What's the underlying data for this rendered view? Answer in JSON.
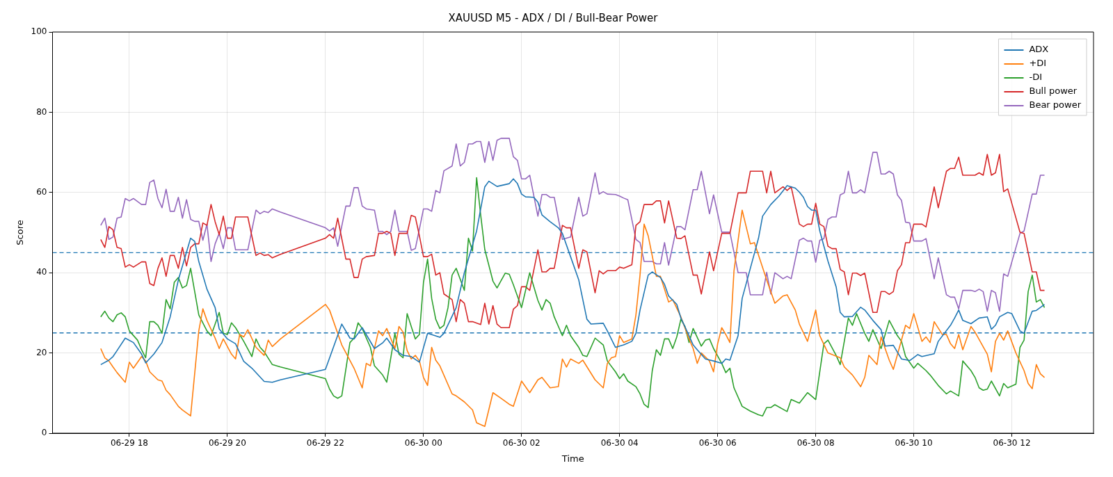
{
  "chart_data": {
    "type": "line",
    "title": "XAUUSD M5 - ADX / DI / Bull-Bear Power",
    "xlabel": "Time",
    "ylabel": "Score",
    "xlim": [
      "--06-29T16:26",
      "--06-30T13:40"
    ],
    "ylim": [
      0,
      100
    ],
    "xticks": [
      {
        "value": "--06-29T18:00",
        "label": "06-29 18"
      },
      {
        "value": "--06-29T20:00",
        "label": "06-29 20"
      },
      {
        "value": "--06-29T22:00",
        "label": "06-29 22"
      },
      {
        "value": "--06-30T00:00",
        "label": "06-30 00"
      },
      {
        "value": "--06-30T02:00",
        "label": "06-30 02"
      },
      {
        "value": "--06-30T04:00",
        "label": "06-30 04"
      },
      {
        "value": "--06-30T06:00",
        "label": "06-30 06"
      },
      {
        "value": "--06-30T08:00",
        "label": "06-30 08"
      },
      {
        "value": "--06-30T10:00",
        "label": "06-30 10"
      },
      {
        "value": "--06-30T12:00",
        "label": "06-30 12"
      }
    ],
    "yticks": [
      0,
      20,
      40,
      60,
      80,
      100
    ],
    "grid": true,
    "legend": "top right",
    "ref_lines": [
      {
        "axis": "y",
        "value": 45,
        "color": "#1f77b4",
        "line_style": "dashed"
      },
      {
        "axis": "y",
        "value": 25,
        "color": "#1f77b4",
        "line_style": "dashed"
      }
    ],
    "series": [
      {
        "name": "ADX",
        "color": "#1f77b4",
        "x": [
          "--06-29T17:25",
          "--06-29T17:35",
          "--06-29T17:40",
          "--06-29T17:45",
          "--06-29T17:55",
          "--06-29T18:05",
          "--06-29T18:15",
          "--06-29T18:20",
          "--06-29T18:30",
          "--06-29T18:40",
          "--06-29T18:50",
          "--06-29T19:00",
          "--06-29T19:15",
          "--06-29T19:20",
          "--06-29T19:25",
          "--06-29T19:35",
          "--06-29T19:45",
          "--06-29T19:50",
          "--06-29T20:00",
          "--06-29T20:10",
          "--06-29T20:20",
          "--06-29T20:30",
          "--06-29T20:45",
          "--06-29T20:55",
          "--06-29T21:05",
          "--06-29T22:00",
          "--06-29T22:20",
          "--06-29T22:30",
          "--06-29T22:35",
          "--06-29T22:45",
          "--06-29T23:00",
          "--06-29T23:10",
          "--06-29T23:15",
          "--06-29T23:25",
          "--06-29T23:35",
          "--06-29T23:45",
          "--06-29T23:55",
          "--06-30T00:05",
          "--06-30T00:20",
          "--06-30T00:25",
          "--06-30T00:40",
          "--06-30T00:50",
          "--06-30T01:05",
          "--06-30T01:15",
          "--06-30T01:20",
          "--06-30T01:30",
          "--06-30T01:45",
          "--06-30T01:50",
          "--06-30T01:55",
          "--06-30T02:00",
          "--06-30T02:05",
          "--06-30T02:15",
          "--06-30T02:20",
          "--06-30T02:25",
          "--06-30T02:35",
          "--06-30T02:45",
          "--06-30T02:50",
          "--06-30T03:00",
          "--06-30T03:10",
          "--06-30T03:20",
          "--06-30T03:25",
          "--06-30T03:40",
          "--06-30T03:45",
          "--06-30T03:55",
          "--06-30T04:05",
          "--06-30T04:15",
          "--06-30T04:20",
          "--06-30T04:25",
          "--06-30T04:35",
          "--06-30T04:40",
          "--06-30T04:50",
          "--06-30T04:55",
          "--06-30T05:00",
          "--06-30T05:10",
          "--06-30T05:15",
          "--06-30T05:25",
          "--06-30T05:30",
          "--06-30T05:35",
          "--06-30T05:45",
          "--06-30T05:55",
          "--06-30T06:05",
          "--06-30T06:10",
          "--06-30T06:15",
          "--06-30T06:25",
          "--06-30T06:30",
          "--06-30T06:40",
          "--06-30T06:50",
          "--06-30T06:55",
          "--06-30T07:05",
          "--06-30T07:15",
          "--06-30T07:25",
          "--06-30T07:35",
          "--06-30T07:40",
          "--06-30T07:45",
          "--06-30T07:50",
          "--06-30T07:55",
          "--06-30T08:00",
          "--06-30T08:05",
          "--06-30T08:15",
          "--06-30T08:25",
          "--06-30T08:30",
          "--06-30T08:35",
          "--06-30T08:45",
          "--06-30T08:55",
          "--06-30T09:00",
          "--06-30T09:10",
          "--06-30T09:20",
          "--06-30T09:25",
          "--06-30T09:35",
          "--06-30T09:45",
          "--06-30T09:55",
          "--06-30T10:05",
          "--06-30T10:10",
          "--06-30T10:25",
          "--06-30T10:30",
          "--06-30T10:45",
          "--06-30T10:50",
          "--06-30T10:55",
          "--06-30T11:00",
          "--06-30T11:10",
          "--06-30T11:20",
          "--06-30T11:30",
          "--06-30T11:35",
          "--06-30T11:40",
          "--06-30T11:45",
          "--06-30T11:55",
          "--06-30T12:00",
          "--06-30T12:10",
          "--06-30T12:15",
          "--06-30T12:25",
          "--06-30T12:30",
          "--06-30T12:40"
        ],
        "values": [
          17.1,
          18.2,
          19.1,
          20.6,
          23.7,
          22.6,
          19.7,
          17.5,
          19.7,
          22.6,
          29,
          38.2,
          48.6,
          47.8,
          42.8,
          35.9,
          31.3,
          26,
          23.5,
          22.3,
          17.9,
          16.2,
          12.9,
          12.7,
          13.3,
          15.9,
          27.2,
          23.7,
          23.5,
          26.3,
          21.1,
          22.5,
          23.7,
          20.8,
          19.4,
          19.1,
          17.7,
          24.9,
          23.9,
          24.9,
          31.3,
          40,
          50.4,
          61.4,
          62.8,
          61.5,
          62.2,
          63.4,
          62.2,
          59.6,
          58.9,
          58.8,
          57.6,
          54.4,
          52.7,
          51.2,
          49.8,
          44,
          38.2,
          28.4,
          27.2,
          27.4,
          25.5,
          21.4,
          22,
          22.9,
          24.9,
          30.7,
          39.4,
          40.2,
          38.8,
          37.1,
          34.2,
          32.1,
          28.7,
          24.3,
          22,
          20.8,
          18.5,
          18,
          17.4,
          18.5,
          18.2,
          24.3,
          33.6,
          41.1,
          48.6,
          54.1,
          57,
          59.1,
          61.7,
          61.1,
          60.1,
          58.8,
          56.5,
          55.6,
          55.6,
          50.4,
          42.9,
          36.5,
          30.1,
          29,
          29.1,
          31.4,
          30.7,
          28.1,
          25.8,
          21.7,
          21.9,
          18.5,
          18.1,
          19.6,
          19.1,
          19.8,
          22.9,
          26.9,
          28.7,
          30.7,
          28.1,
          27.3,
          28.7,
          29,
          25.9,
          26.9,
          29,
          30.1,
          29.8,
          25.5,
          24.9,
          30.4,
          30.6,
          32.1
        ]
      },
      {
        "name": "+DI",
        "color": "#ff7f0e",
        "x": [
          "--06-29T17:25",
          "--06-29T17:30",
          "--06-29T17:35",
          "--06-29T17:40",
          "--06-29T17:45",
          "--06-29T17:55",
          "--06-29T18:00",
          "--06-29T18:05",
          "--06-29T18:15",
          "--06-29T18:20",
          "--06-29T18:25",
          "--06-29T18:35",
          "--06-29T18:40",
          "--06-29T18:45",
          "--06-29T18:50",
          "--06-29T19:00",
          "--06-29T19:05",
          "--06-29T19:15",
          "--06-29T19:25",
          "--06-29T19:30",
          "--06-29T19:35",
          "--06-29T19:45",
          "--06-29T19:50",
          "--06-29T19:55",
          "--06-29T20:05",
          "--06-29T20:10",
          "--06-29T20:15",
          "--06-29T20:20",
          "--06-29T20:25",
          "--06-29T20:35",
          "--06-29T20:45",
          "--06-29T20:50",
          "--06-29T20:55",
          "--06-29T21:05",
          "--06-29T22:00",
          "--06-29T22:05",
          "--06-29T22:20",
          "--06-29T22:35",
          "--06-29T22:45",
          "--06-29T22:50",
          "--06-29T22:55",
          "--06-29T23:05",
          "--06-29T23:10",
          "--06-29T23:15",
          "--06-29T23:25",
          "--06-29T23:30",
          "--06-29T23:35",
          "--06-29T23:40",
          "--06-29T23:45",
          "--06-29T23:50",
          "--06-29T23:55",
          "--06-30T00:00",
          "--06-30T00:05",
          "--06-30T00:10",
          "--06-30T00:15",
          "--06-30T00:20",
          "--06-30T00:35",
          "--06-30T00:40",
          "--06-30T00:50",
          "--06-30T01:00",
          "--06-30T01:05",
          "--06-30T01:15",
          "--06-30T01:25",
          "--06-30T01:35",
          "--06-30T01:45",
          "--06-30T01:50",
          "--06-30T02:00",
          "--06-30T02:10",
          "--06-30T02:20",
          "--06-30T02:25",
          "--06-30T02:35",
          "--06-30T02:45",
          "--06-30T02:50",
          "--06-30T02:55",
          "--06-30T03:00",
          "--06-30T03:10",
          "--06-30T03:15",
          "--06-30T03:30",
          "--06-30T03:40",
          "--06-30T03:45",
          "--06-30T03:50",
          "--06-30T03:55",
          "--06-30T04:00",
          "--06-30T04:05",
          "--06-30T04:15",
          "--06-30T04:20",
          "--06-30T04:25",
          "--06-30T04:30",
          "--06-30T04:35",
          "--06-30T04:45",
          "--06-30T04:50",
          "--06-30T05:00",
          "--06-30T05:05",
          "--06-30T05:15",
          "--06-30T05:25",
          "--06-30T05:30",
          "--06-30T05:35",
          "--06-30T05:40",
          "--06-30T05:50",
          "--06-30T05:55",
          "--06-30T06:00",
          "--06-30T06:05",
          "--06-30T06:10",
          "--06-30T06:15",
          "--06-30T06:20",
          "--06-30T06:30",
          "--06-30T06:40",
          "--06-30T06:45",
          "--06-30T07:00",
          "--06-30T07:10",
          "--06-30T07:20",
          "--06-30T07:25",
          "--06-30T07:35",
          "--06-30T07:40",
          "--06-30T07:50",
          "--06-30T08:00",
          "--06-30T08:05",
          "--06-30T08:15",
          "--06-30T08:30",
          "--06-30T08:35",
          "--06-30T08:45",
          "--06-30T08:55",
          "--06-30T09:00",
          "--06-30T09:05",
          "--06-30T09:15",
          "--06-30T09:20",
          "--06-30T09:30",
          "--06-30T09:35",
          "--06-30T09:50",
          "--06-30T09:55",
          "--06-30T10:00",
          "--06-30T10:10",
          "--06-30T10:15",
          "--06-30T10:20",
          "--06-30T10:25",
          "--06-30T10:35",
          "--06-30T10:40",
          "--06-30T10:45",
          "--06-30T10:50",
          "--06-30T10:55",
          "--06-30T11:00",
          "--06-30T11:10",
          "--06-30T11:15",
          "--06-30T11:30",
          "--06-30T11:35",
          "--06-30T11:40",
          "--06-30T11:45",
          "--06-30T11:50",
          "--06-30T11:55",
          "--06-30T12:05",
          "--06-30T12:15",
          "--06-30T12:20",
          "--06-30T12:25",
          "--06-30T12:30",
          "--06-30T12:35",
          "--06-30T12:40"
        ],
        "values": [
          21.1,
          18.8,
          18,
          16.5,
          15.1,
          12.7,
          17.7,
          16.2,
          19.1,
          18,
          15.3,
          13.3,
          13,
          10.7,
          9.6,
          6.7,
          5.8,
          4.3,
          25.5,
          31,
          28.1,
          23.7,
          21.1,
          23.5,
          19.7,
          18.5,
          24.6,
          24,
          25.8,
          21.4,
          19.4,
          23.2,
          21.6,
          23.5,
          32.1,
          30.7,
          22,
          16.2,
          11.3,
          17.4,
          16.8,
          25.5,
          24.3,
          26.1,
          21.1,
          26.6,
          25.2,
          20.6,
          18.5,
          19.4,
          18,
          13.9,
          11.9,
          21.4,
          18.2,
          16.8,
          9.8,
          9.3,
          7.8,
          5.8,
          2.6,
          1.7,
          10.1,
          8.7,
          7.2,
          6.7,
          13,
          10.1,
          13.3,
          13.9,
          11.3,
          11.6,
          18.5,
          16.5,
          18.5,
          17.4,
          18.2,
          13.3,
          11.3,
          17.4,
          18.8,
          19.1,
          24.3,
          22.6,
          23.5,
          29.5,
          39.4,
          52.1,
          49.2,
          39.1,
          39.1,
          32.7,
          33.3,
          29,
          23.5,
          21.1,
          17.4,
          20,
          18,
          15.3,
          22.3,
          26.3,
          24.6,
          22.6,
          40.5,
          55.6,
          47.2,
          47.5,
          38.2,
          32.4,
          34.2,
          34.5,
          30.7,
          27.2,
          22.9,
          30.7,
          24.3,
          20,
          18.8,
          16.5,
          14.5,
          11.6,
          13.9,
          19.4,
          17.1,
          24,
          18.2,
          15.9,
          26.9,
          26.1,
          29.8,
          22.9,
          24,
          22.6,
          27.8,
          24.6,
          24.6,
          22.3,
          21.1,
          24.6,
          20.8,
          26.6,
          25.2,
          19.7,
          15.3,
          22.9,
          24.9,
          23.2,
          25.5,
          20,
          15.6,
          12.4,
          11.1,
          17.1,
          14.8,
          13.9
        ]
      },
      {
        "name": "-DI",
        "color": "#2ca02c",
        "x": [
          "--06-29T17:25",
          "--06-29T17:30",
          "--06-29T17:35",
          "--06-29T17:40",
          "--06-29T17:45",
          "--06-29T17:50",
          "--06-29T17:55",
          "--06-29T18:00",
          "--06-29T18:10",
          "--06-29T18:15",
          "--06-29T18:20",
          "--06-29T18:25",
          "--06-29T18:30",
          "--06-29T18:35",
          "--06-29T18:40",
          "--06-29T18:45",
          "--06-29T18:50",
          "--06-29T18:55",
          "--06-29T19:00",
          "--06-29T19:05",
          "--06-29T19:10",
          "--06-29T19:15",
          "--06-29T19:20",
          "--06-29T19:25",
          "--06-29T19:35",
          "--06-29T19:40",
          "--06-29T19:50",
          "--06-29T19:55",
          "--06-29T20:00",
          "--06-29T20:05",
          "--06-29T20:10",
          "--06-29T20:20",
          "--06-29T20:30",
          "--06-29T20:35",
          "--06-29T20:40",
          "--06-29T20:45",
          "--06-29T20:55",
          "--06-29T21:05",
          "--06-29T22:00",
          "--06-29T22:05",
          "--06-29T22:10",
          "--06-29T22:15",
          "--06-29T22:20",
          "--06-29T22:30",
          "--06-29T22:35",
          "--06-29T22:40",
          "--06-29T22:45",
          "--06-29T22:55",
          "--06-29T23:00",
          "--06-29T23:10",
          "--06-29T23:15",
          "--06-29T23:25",
          "--06-29T23:30",
          "--06-29T23:35",
          "--06-29T23:40",
          "--06-29T23:45",
          "--06-29T23:50",
          "--06-29T23:55",
          "--06-30T00:00",
          "--06-30T00:05",
          "--06-30T00:10",
          "--06-30T00:15",
          "--06-30T00:20",
          "--06-30T00:25",
          "--06-30T00:30",
          "--06-30T00:35",
          "--06-30T00:40",
          "--06-30T00:50",
          "--06-30T00:55",
          "--06-30T01:00",
          "--06-30T01:05",
          "--06-30T01:10",
          "--06-30T01:15",
          "--06-30T01:25",
          "--06-30T01:30",
          "--06-30T01:40",
          "--06-30T01:45",
          "--06-30T01:50",
          "--06-30T02:00",
          "--06-30T02:10",
          "--06-30T02:20",
          "--06-30T02:25",
          "--06-30T02:30",
          "--06-30T02:35",
          "--06-30T02:40",
          "--06-30T02:50",
          "--06-30T02:55",
          "--06-30T03:00",
          "--06-30T03:10",
          "--06-30T03:15",
          "--06-30T03:20",
          "--06-30T03:30",
          "--06-30T03:40",
          "--06-30T03:45",
          "--06-30T03:55",
          "--06-30T04:00",
          "--06-30T04:05",
          "--06-30T04:10",
          "--06-30T04:20",
          "--06-30T04:25",
          "--06-30T04:30",
          "--06-30T04:35",
          "--06-30T04:40",
          "--06-30T04:45",
          "--06-30T04:50",
          "--06-30T04:55",
          "--06-30T05:00",
          "--06-30T05:05",
          "--06-30T05:10",
          "--06-30T05:15",
          "--06-30T05:20",
          "--06-30T05:25",
          "--06-30T05:30",
          "--06-30T05:40",
          "--06-30T05:45",
          "--06-30T05:50",
          "--06-30T05:55",
          "--06-30T06:05",
          "--06-30T06:10",
          "--06-30T06:15",
          "--06-30T06:20",
          "--06-30T06:30",
          "--06-30T06:40",
          "--06-30T06:50",
          "--06-30T06:55",
          "--06-30T07:00",
          "--06-30T07:05",
          "--06-30T07:10",
          "--06-30T07:25",
          "--06-30T07:30",
          "--06-30T07:40",
          "--06-30T07:50",
          "--06-30T08:00",
          "--06-30T08:10",
          "--06-30T08:15",
          "--06-30T08:25",
          "--06-30T08:30",
          "--06-30T08:40",
          "--06-30T08:45",
          "--06-30T08:50",
          "--06-30T09:00",
          "--06-30T09:05",
          "--06-30T09:10",
          "--06-30T09:20",
          "--06-30T09:30",
          "--06-30T09:40",
          "--06-30T09:45",
          "--06-30T09:50",
          "--06-30T10:00",
          "--06-30T10:05",
          "--06-30T10:15",
          "--06-30T10:20",
          "--06-30T10:30",
          "--06-30T10:40",
          "--06-30T10:45",
          "--06-30T10:55",
          "--06-30T11:00",
          "--06-30T11:10",
          "--06-30T11:15",
          "--06-30T11:20",
          "--06-30T11:25",
          "--06-30T11:30",
          "--06-30T11:35",
          "--06-30T11:45",
          "--06-30T11:50",
          "--06-30T11:55",
          "--06-30T12:05",
          "--06-30T12:10",
          "--06-30T12:15",
          "--06-30T12:20",
          "--06-30T12:25",
          "--06-30T12:30",
          "--06-30T12:35",
          "--06-30T12:40"
        ],
        "values": [
          29,
          30.4,
          28.7,
          27.8,
          29.5,
          30,
          29,
          25.5,
          23.2,
          20.8,
          18.8,
          27.8,
          27.8,
          26.9,
          24.9,
          33.3,
          31,
          37.6,
          38.8,
          36.2,
          36.8,
          41.1,
          35.3,
          29.5,
          25.5,
          24.3,
          30.1,
          24.9,
          24.6,
          27.5,
          26.3,
          22.9,
          19.1,
          23.5,
          21.4,
          20.3,
          17.1,
          16.5,
          13.6,
          11,
          9.3,
          8.7,
          9.3,
          22.6,
          23.7,
          27.5,
          26.1,
          21.4,
          16.8,
          14.5,
          12.7,
          24.9,
          19.7,
          18.8,
          29.8,
          26.6,
          23.5,
          24.6,
          37.6,
          43.4,
          33.6,
          28.4,
          26.1,
          26.9,
          31.3,
          39.4,
          41.1,
          35.6,
          48.6,
          45.4,
          63.7,
          54.4,
          45.8,
          37.9,
          36.2,
          39.9,
          39.6,
          37,
          31.3,
          40,
          33.1,
          30.7,
          33.3,
          32.4,
          29,
          24.3,
          26.9,
          24.3,
          21.4,
          19.4,
          19.1,
          23.7,
          22,
          18,
          15.3,
          13.6,
          14.8,
          13,
          11.6,
          9.8,
          7.2,
          6.4,
          15.6,
          20.8,
          19.4,
          23.5,
          23.5,
          21.1,
          24,
          28.4,
          26.6,
          22.6,
          26.1,
          21.7,
          23.2,
          23.5,
          21.1,
          17.4,
          15.1,
          16.2,
          11.3,
          6.7,
          5.5,
          4.6,
          4.3,
          6.4,
          6.4,
          7.1,
          5.4,
          8.4,
          7.5,
          10.1,
          8.4,
          22.3,
          23.2,
          19.4,
          17.1,
          28.7,
          26.9,
          29.8,
          24.9,
          22.9,
          25.8,
          21.1,
          28.1,
          24.3,
          22.9,
          19.1,
          16.2,
          17.4,
          15.6,
          14.5,
          11.9,
          9.8,
          10.5,
          9.3,
          18,
          15.6,
          13.9,
          11.3,
          10.7,
          11,
          13,
          9.3,
          12.4,
          11.3,
          12.2,
          21.4,
          23.2,
          35.3,
          39.4,
          32.7,
          33.3,
          31.3
        ]
      },
      {
        "name": "Bull power",
        "color": "#d62728",
        "x": [
          "--06-29T17:25",
          "--06-29T17:30",
          "--06-29T17:35",
          "--06-29T17:40",
          "--06-29T17:45",
          "--06-29T17:50",
          "--06-29T17:55",
          "--06-29T18:00",
          "--06-29T18:05",
          "--06-29T18:15",
          "--06-29T18:20",
          "--06-29T18:25",
          "--06-29T18:30",
          "--06-29T18:35",
          "--06-29T18:40",
          "--06-29T18:45",
          "--06-29T18:50",
          "--06-29T18:55",
          "--06-29T19:00",
          "--06-29T19:05",
          "--06-29T19:10",
          "--06-29T19:15",
          "--06-29T19:20",
          "--06-29T19:25",
          "--06-29T19:30",
          "--06-29T19:35",
          "--06-29T19:40",
          "--06-29T19:45",
          "--06-29T19:50",
          "--06-29T19:55",
          "--06-29T20:00",
          "--06-29T20:05",
          "--06-29T20:10",
          "--06-29T20:25",
          "--06-29T20:35",
          "--06-29T20:40",
          "--06-29T20:45",
          "--06-29T20:50",
          "--06-29T20:55",
          "--06-29T21:05",
          "--06-29T22:00",
          "--06-29T22:05",
          "--06-29T22:10",
          "--06-29T22:15",
          "--06-29T22:25",
          "--06-29T22:30",
          "--06-29T22:35",
          "--06-29T22:40",
          "--06-29T22:45",
          "--06-29T22:50",
          "--06-29T23:00",
          "--06-29T23:05",
          "--06-29T23:10",
          "--06-29T23:15",
          "--06-29T23:20",
          "--06-29T23:25",
          "--06-29T23:30",
          "--06-29T23:40",
          "--06-29T23:45",
          "--06-29T23:50",
          "--06-29T23:55",
          "--06-30T00:00",
          "--06-30T00:05",
          "--06-30T00:10",
          "--06-30T00:15",
          "--06-30T00:20",
          "--06-30T00:25",
          "--06-30T00:35",
          "--06-30T00:40",
          "--06-30T00:45",
          "--06-30T00:50",
          "--06-30T00:55",
          "--06-30T01:00",
          "--06-30T01:10",
          "--06-30T01:15",
          "--06-30T01:20",
          "--06-30T01:25",
          "--06-30T01:30",
          "--06-30T01:35",
          "--06-30T01:45",
          "--06-30T01:50",
          "--06-30T01:55",
          "--06-30T02:00",
          "--06-30T02:05",
          "--06-30T02:10",
          "--06-30T02:20",
          "--06-30T02:25",
          "--06-30T02:30",
          "--06-30T02:35",
          "--06-30T02:40",
          "--06-30T02:50",
          "--06-30T02:55",
          "--06-30T03:00",
          "--06-30T03:10",
          "--06-30T03:15",
          "--06-30T03:20",
          "--06-30T03:30",
          "--06-30T03:35",
          "--06-30T03:40",
          "--06-30T03:45",
          "--06-30T03:55",
          "--06-30T04:00",
          "--06-30T04:05",
          "--06-30T04:15",
          "--06-30T04:20",
          "--06-30T04:25",
          "--06-30T04:30",
          "--06-30T04:40",
          "--06-30T04:45",
          "--06-30T04:50",
          "--06-30T04:55",
          "--06-30T05:00",
          "--06-30T05:10",
          "--06-30T05:15",
          "--06-30T05:20",
          "--06-30T05:30",
          "--06-30T05:35",
          "--06-30T05:40",
          "--06-30T05:50",
          "--06-30T05:55",
          "--06-30T06:05",
          "--06-30T06:15",
          "--06-30T06:25",
          "--06-30T06:35",
          "--06-30T06:40",
          "--06-30T06:55",
          "--06-30T07:00",
          "--06-30T07:05",
          "--06-30T07:10",
          "--06-30T07:20",
          "--06-30T07:25",
          "--06-30T07:30",
          "--06-30T07:40",
          "--06-30T07:45",
          "--06-30T07:50",
          "--06-30T07:55",
          "--06-30T08:00",
          "--06-30T08:05",
          "--06-30T08:10",
          "--06-30T08:15",
          "--06-30T08:20",
          "--06-30T08:25",
          "--06-30T08:30",
          "--06-30T08:35",
          "--06-30T08:40",
          "--06-30T08:45",
          "--06-30T08:50",
          "--06-30T08:55",
          "--06-30T09:00",
          "--06-30T09:10",
          "--06-30T09:15",
          "--06-30T09:20",
          "--06-30T09:25",
          "--06-30T09:30",
          "--06-30T09:35",
          "--06-30T09:40",
          "--06-30T09:45",
          "--06-30T09:50",
          "--06-30T09:55",
          "--06-30T10:00",
          "--06-30T10:10",
          "--06-30T10:15",
          "--06-30T10:25",
          "--06-30T10:30",
          "--06-30T10:40",
          "--06-30T10:45",
          "--06-30T10:50",
          "--06-30T10:55",
          "--06-30T11:00",
          "--06-30T11:10",
          "--06-30T11:15",
          "--06-30T11:20",
          "--06-30T11:25",
          "--06-30T11:30",
          "--06-30T11:35",
          "--06-30T11:40",
          "--06-30T11:45",
          "--06-30T11:50",
          "--06-30T11:55",
          "--06-30T12:10",
          "--06-30T12:15",
          "--06-30T12:25",
          "--06-30T12:30",
          "--06-30T12:35",
          "--06-30T12:40"
        ],
        "values": [
          48.3,
          46.3,
          51.5,
          50.7,
          46.3,
          46,
          41.4,
          42,
          41.4,
          42.7,
          42.7,
          37.3,
          36.8,
          41.1,
          43.7,
          39.1,
          44.3,
          44.3,
          41.1,
          46.3,
          41.7,
          46.3,
          47.2,
          47.2,
          52.4,
          51.8,
          57,
          52.7,
          49.5,
          54.1,
          48.6,
          48.6,
          53.9,
          53.9,
          44.3,
          44.9,
          44.3,
          44.5,
          43.7,
          44.6,
          48.6,
          49.5,
          48.6,
          53.6,
          43.4,
          43.4,
          38.8,
          38.8,
          43.4,
          44,
          44.3,
          49.8,
          49.8,
          50.3,
          49.8,
          44.3,
          49.8,
          49.8,
          54.3,
          53.9,
          49.2,
          44,
          44,
          44.6,
          39.4,
          40,
          34.7,
          33.3,
          27.8,
          33.3,
          32.4,
          27.8,
          27.8,
          27.1,
          32.4,
          27.2,
          31.8,
          27.2,
          26.3,
          26.3,
          30.9,
          31.8,
          36.5,
          36.5,
          35.6,
          45.7,
          40.2,
          40.2,
          41.1,
          41.1,
          51.8,
          51.2,
          51.2,
          41.1,
          45.7,
          45.2,
          35,
          40.5,
          39.7,
          40.5,
          40.5,
          41.4,
          41.1,
          42,
          51.8,
          52.7,
          57,
          57,
          57.9,
          57.9,
          52.4,
          57.9,
          48.6,
          48.5,
          49.2,
          39.4,
          39.4,
          34.7,
          45.2,
          40.5,
          49.8,
          49.8,
          59.9,
          59.9,
          65.3,
          65.3,
          59.9,
          65.3,
          59.9,
          61.4,
          60.5,
          61.4,
          52.1,
          51.5,
          52.1,
          52.1,
          57.3,
          52.1,
          51.5,
          46.6,
          46,
          46,
          40.8,
          40.2,
          34.5,
          39.9,
          39.9,
          39.3,
          39.9,
          30.1,
          30.1,
          35.3,
          35.3,
          34.6,
          35.3,
          40.5,
          42,
          47.5,
          47.5,
          52.1,
          52.1,
          51.4,
          61.4,
          56.2,
          65.3,
          66,
          66,
          68.8,
          64.3,
          64.3,
          64.3,
          64.9,
          64.3,
          69.5,
          64.3,
          64.9,
          69.5,
          60.2,
          60.9,
          50.1,
          49.8,
          40.2,
          40.2,
          35.6,
          35.6
        ]
      },
      {
        "name": "Bear power",
        "color": "#9467bd",
        "x": [
          "--06-29T17:25",
          "--06-29T17:30",
          "--06-29T17:35",
          "--06-29T17:40",
          "--06-29T17:45",
          "--06-29T17:50",
          "--06-29T17:55",
          "--06-29T18:00",
          "--06-29T18:05",
          "--06-29T18:15",
          "--06-29T18:20",
          "--06-29T18:25",
          "--06-29T18:30",
          "--06-29T18:35",
          "--06-29T18:40",
          "--06-29T18:45",
          "--06-29T18:50",
          "--06-29T18:55",
          "--06-29T19:00",
          "--06-29T19:05",
          "--06-29T19:10",
          "--06-29T19:15",
          "--06-29T19:20",
          "--06-29T19:25",
          "--06-29T19:30",
          "--06-29T19:35",
          "--06-29T19:40",
          "--06-29T19:45",
          "--06-29T19:50",
          "--06-29T19:55",
          "--06-29T20:00",
          "--06-29T20:05",
          "--06-29T20:10",
          "--06-29T20:25",
          "--06-29T20:35",
          "--06-29T20:40",
          "--06-29T20:45",
          "--06-29T20:50",
          "--06-29T20:55",
          "--06-29T21:05",
          "--06-29T22:00",
          "--06-29T22:05",
          "--06-29T22:10",
          "--06-29T22:15",
          "--06-29T22:25",
          "--06-29T22:30",
          "--06-29T22:35",
          "--06-29T22:40",
          "--06-29T22:45",
          "--06-29T22:50",
          "--06-29T23:00",
          "--06-29T23:05",
          "--06-29T23:10",
          "--06-29T23:15",
          "--06-29T23:20",
          "--06-29T23:25",
          "--06-29T23:30",
          "--06-29T23:40",
          "--06-29T23:45",
          "--06-29T23:50",
          "--06-29T23:55",
          "--06-30T00:00",
          "--06-30T00:05",
          "--06-30T00:10",
          "--06-30T00:15",
          "--06-30T00:20",
          "--06-30T00:25",
          "--06-30T00:35",
          "--06-30T00:40",
          "--06-30T00:45",
          "--06-30T00:50",
          "--06-30T00:55",
          "--06-30T01:00",
          "--06-30T01:05",
          "--06-30T01:10",
          "--06-30T01:15",
          "--06-30T01:20",
          "--06-30T01:25",
          "--06-30T01:30",
          "--06-30T01:35",
          "--06-30T01:45",
          "--06-30T01:50",
          "--06-30T01:55",
          "--06-30T02:00",
          "--06-30T02:05",
          "--06-30T02:10",
          "--06-30T02:20",
          "--06-30T02:25",
          "--06-30T02:30",
          "--06-30T02:35",
          "--06-30T02:40",
          "--06-30T02:50",
          "--06-30T02:55",
          "--06-30T03:00",
          "--06-30T03:10",
          "--06-30T03:15",
          "--06-30T03:20",
          "--06-30T03:30",
          "--06-30T03:35",
          "--06-30T03:40",
          "--06-30T03:45",
          "--06-30T03:55",
          "--06-30T04:00",
          "--06-30T04:05",
          "--06-30T04:10",
          "--06-30T04:20",
          "--06-30T04:25",
          "--06-30T04:30",
          "--06-30T04:40",
          "--06-30T04:45",
          "--06-30T04:50",
          "--06-30T04:55",
          "--06-30T05:00",
          "--06-30T05:10",
          "--06-30T05:15",
          "--06-30T05:20",
          "--06-30T05:30",
          "--06-30T05:35",
          "--06-30T05:40",
          "--06-30T05:50",
          "--06-30T05:55",
          "--06-30T06:05",
          "--06-30T06:15",
          "--06-30T06:25",
          "--06-30T06:35",
          "--06-30T06:40",
          "--06-30T06:55",
          "--06-30T07:00",
          "--06-30T07:05",
          "--06-30T07:10",
          "--06-30T07:20",
          "--06-30T07:25",
          "--06-30T07:30",
          "--06-30T07:40",
          "--06-30T07:45",
          "--06-30T07:50",
          "--06-30T07:55",
          "--06-30T08:00",
          "--06-30T08:05",
          "--06-30T08:10",
          "--06-30T08:15",
          "--06-30T08:20",
          "--06-30T08:25",
          "--06-30T08:30",
          "--06-30T08:35",
          "--06-30T08:40",
          "--06-30T08:45",
          "--06-30T08:50",
          "--06-30T08:55",
          "--06-30T09:00",
          "--06-30T09:10",
          "--06-30T09:15",
          "--06-30T09:20",
          "--06-30T09:25",
          "--06-30T09:30",
          "--06-30T09:35",
          "--06-30T09:40",
          "--06-30T09:45",
          "--06-30T09:50",
          "--06-30T09:55",
          "--06-30T10:00",
          "--06-30T10:10",
          "--06-30T10:15",
          "--06-30T10:25",
          "--06-30T10:30",
          "--06-30T10:40",
          "--06-30T10:45",
          "--06-30T10:50",
          "--06-30T10:55",
          "--06-30T11:00",
          "--06-30T11:10",
          "--06-30T11:15",
          "--06-30T11:20",
          "--06-30T11:25",
          "--06-30T11:30",
          "--06-30T11:35",
          "--06-30T11:40",
          "--06-30T11:45",
          "--06-30T11:50",
          "--06-30T11:55",
          "--06-30T12:10",
          "--06-30T12:15",
          "--06-30T12:25",
          "--06-30T12:30",
          "--06-30T12:35",
          "--06-30T12:40"
        ],
        "values": [
          51.8,
          53.6,
          48.3,
          48.9,
          53.6,
          53.9,
          58.5,
          57.9,
          58.5,
          57,
          57,
          62.5,
          63.1,
          58.5,
          56.2,
          60.8,
          55.3,
          55.3,
          58.8,
          53.6,
          58.2,
          53.3,
          52.8,
          52.8,
          48.1,
          52.1,
          42.8,
          47.2,
          49.8,
          46,
          51.2,
          51.2,
          45.7,
          45.7,
          55.6,
          54.7,
          55.3,
          55,
          55.9,
          55.1,
          51.2,
          50.4,
          51.2,
          46.6,
          56.6,
          56.6,
          61.2,
          61.2,
          56.6,
          55.9,
          55.6,
          50.3,
          50.3,
          49.5,
          50.3,
          55.6,
          50.3,
          50.3,
          45.6,
          46,
          50.9,
          55.9,
          55.9,
          55.3,
          60.5,
          59.9,
          65.4,
          66.6,
          72.1,
          66.6,
          67.5,
          72.1,
          72.1,
          72.7,
          72.7,
          67.5,
          72.7,
          68,
          73,
          73.5,
          73.5,
          68.9,
          68,
          63.4,
          63.4,
          64.3,
          54.1,
          59.5,
          59.5,
          58.8,
          58.8,
          48.3,
          48.6,
          48.9,
          58.8,
          54.1,
          54.7,
          64.9,
          59.6,
          60.2,
          59.6,
          59.5,
          59.1,
          58.6,
          58.2,
          48.3,
          47.5,
          42.8,
          42.8,
          42.2,
          42.2,
          47.5,
          41.9,
          51.5,
          51.5,
          50.7,
          60.7,
          60.7,
          65.3,
          54.7,
          59.4,
          50.1,
          50.1,
          40,
          40,
          34.5,
          34.5,
          40.1,
          34.7,
          40,
          38.5,
          39.1,
          38.5,
          48.1,
          48.6,
          47.9,
          47.9,
          42.6,
          48.1,
          48.5,
          53.3,
          53.9,
          53.9,
          59.4,
          59.9,
          65.3,
          59.9,
          59.9,
          60.7,
          59.9,
          70,
          70,
          64.6,
          64.6,
          65.3,
          64.6,
          59.4,
          58,
          52.6,
          52.4,
          47.9,
          47.9,
          48.5,
          38.5,
          43.7,
          34.5,
          33.9,
          33.9,
          31,
          35.6,
          35.6,
          35.3,
          35.9,
          35.3,
          30.4,
          35.6,
          35,
          30.4,
          39.7,
          39.1,
          49.8,
          50.4,
          59.6,
          59.6,
          64.3,
          64.3
        ]
      }
    ]
  }
}
